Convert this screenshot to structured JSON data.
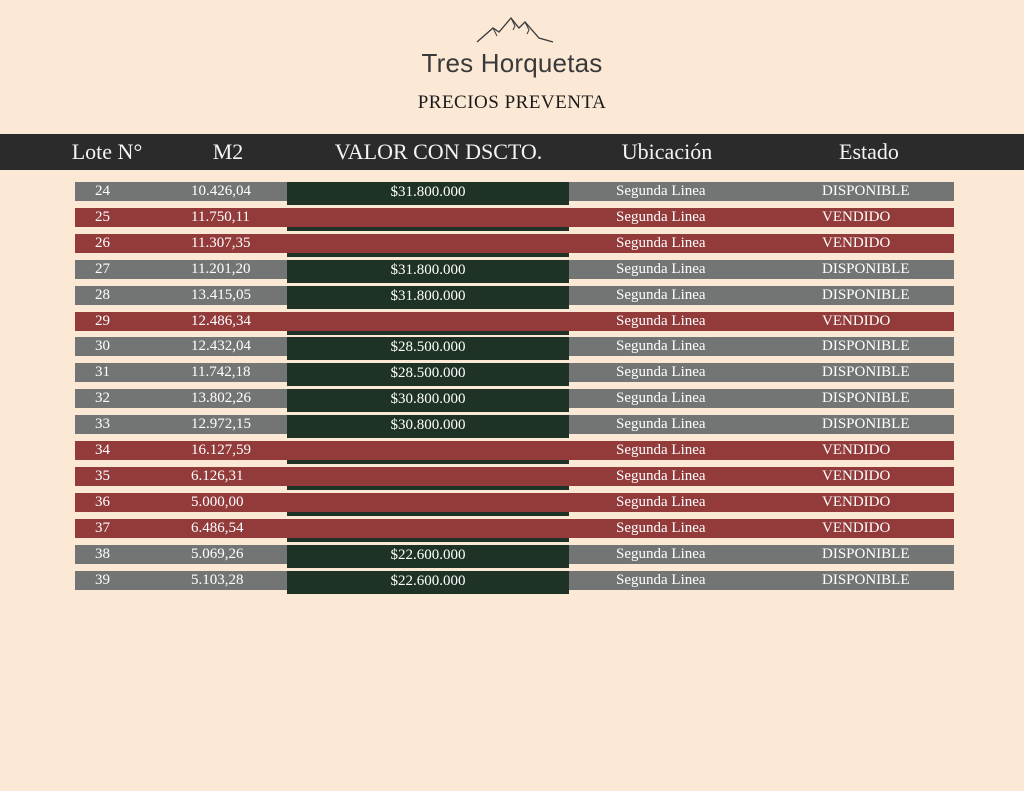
{
  "brand": "Tres Horquetas",
  "subtitle": "PRECIOS PREVENTA",
  "columns": [
    "Lote N°",
    "M2",
    "VALOR CON DSCTO.",
    "Ubicación",
    "Estado"
  ],
  "colors": {
    "disponible": "#737575",
    "vendido": "#933a3b",
    "valor": "#1e3325",
    "header": "#2b2b2b",
    "background": "#fbe9d6"
  },
  "rows": [
    {
      "lote": "24",
      "m2": "10.426,04",
      "valor": "$31.800.000",
      "ubicacion": "Segunda Linea",
      "estado": "DISPONIBLE"
    },
    {
      "lote": "25",
      "m2": "11.750,11",
      "valor": "",
      "ubicacion": "Segunda Linea",
      "estado": "VENDIDO"
    },
    {
      "lote": "26",
      "m2": "11.307,35",
      "valor": "",
      "ubicacion": "Segunda Linea",
      "estado": "VENDIDO"
    },
    {
      "lote": "27",
      "m2": "11.201,20",
      "valor": "$31.800.000",
      "ubicacion": "Segunda Linea",
      "estado": "DISPONIBLE"
    },
    {
      "lote": "28",
      "m2": "13.415,05",
      "valor": "$31.800.000",
      "ubicacion": "Segunda Linea",
      "estado": "DISPONIBLE"
    },
    {
      "lote": "29",
      "m2": "12.486,34",
      "valor": "",
      "ubicacion": "Segunda Linea",
      "estado": "VENDIDO"
    },
    {
      "lote": "30",
      "m2": "12.432,04",
      "valor": "$28.500.000",
      "ubicacion": "Segunda Linea",
      "estado": "DISPONIBLE"
    },
    {
      "lote": "31",
      "m2": "11.742,18",
      "valor": "$28.500.000",
      "ubicacion": "Segunda Linea",
      "estado": "DISPONIBLE"
    },
    {
      "lote": "32",
      "m2": "13.802,26",
      "valor": "$30.800.000",
      "ubicacion": "Segunda Linea",
      "estado": "DISPONIBLE"
    },
    {
      "lote": "33",
      "m2": "12.972,15",
      "valor": "$30.800.000",
      "ubicacion": "Segunda Linea",
      "estado": "DISPONIBLE"
    },
    {
      "lote": "34",
      "m2": "16.127,59",
      "valor": "",
      "ubicacion": "Segunda Linea",
      "estado": "VENDIDO"
    },
    {
      "lote": "35",
      "m2": "6.126,31",
      "valor": "",
      "ubicacion": "Segunda Linea",
      "estado": "VENDIDO"
    },
    {
      "lote": "36",
      "m2": "5.000,00",
      "valor": "",
      "ubicacion": "Segunda Linea",
      "estado": "VENDIDO"
    },
    {
      "lote": "37",
      "m2": "6.486,54",
      "valor": "",
      "ubicacion": "Segunda Linea",
      "estado": "VENDIDO"
    },
    {
      "lote": "38",
      "m2": "5.069,26",
      "valor": "$22.600.000",
      "ubicacion": "Segunda Linea",
      "estado": "DISPONIBLE"
    },
    {
      "lote": "39",
      "m2": "5.103,28",
      "valor": "$22.600.000",
      "ubicacion": "Segunda Linea",
      "estado": "DISPONIBLE"
    }
  ]
}
